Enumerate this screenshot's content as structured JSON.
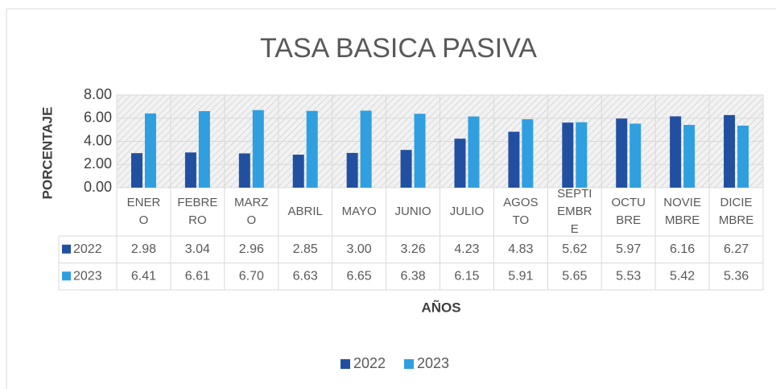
{
  "chart_data": {
    "type": "bar",
    "title": "TASA BASICA PASIVA",
    "y_label": "PORCENTAJE",
    "x_label": "AÑOS",
    "categories": [
      "ENERO",
      "FEBRERO",
      "MARZO",
      "ABRIL",
      "MAYO",
      "JUNIO",
      "JULIO",
      "AGOSTO",
      "SEPTIEMBRE",
      "OCTUBRE",
      "NOVIEMBRE",
      "DICIEMBRE"
    ],
    "series": [
      {
        "name": "2022",
        "color": "#2250a0",
        "values": [
          2.98,
          3.04,
          2.96,
          2.85,
          3.0,
          3.26,
          4.23,
          4.83,
          5.62,
          5.97,
          6.16,
          6.27
        ],
        "value_labels": [
          "2.98",
          "3.04",
          "2.96",
          "2.85",
          "3.00",
          "3.26",
          "4.23",
          "4.83",
          "5.62",
          "5.97",
          "6.16",
          "6.27"
        ]
      },
      {
        "name": "2023",
        "color": "#2f9fe0",
        "values": [
          6.41,
          6.61,
          6.7,
          6.63,
          6.65,
          6.38,
          6.15,
          5.91,
          5.65,
          5.53,
          5.42,
          5.36
        ],
        "value_labels": [
          "6.41",
          "6.61",
          "6.70",
          "6.63",
          "6.65",
          "6.38",
          "6.15",
          "5.91",
          "5.65",
          "5.53",
          "5.42",
          "5.36"
        ]
      }
    ],
    "ylim": [
      0,
      8
    ],
    "yticks": [
      {
        "value": 0,
        "label": "0.00"
      },
      {
        "value": 2,
        "label": "2.00"
      },
      {
        "value": 4,
        "label": "4.00"
      },
      {
        "value": 6,
        "label": "6.00"
      },
      {
        "value": 8,
        "label": "8.00"
      }
    ],
    "grid": true,
    "legend": "bottom"
  }
}
